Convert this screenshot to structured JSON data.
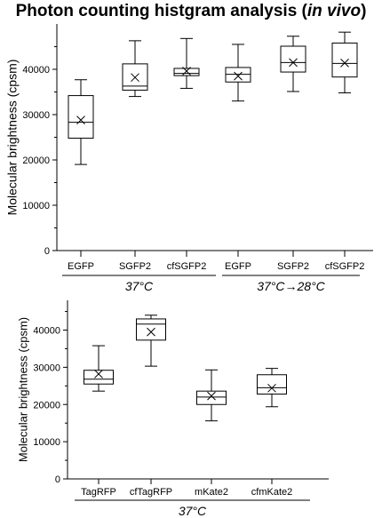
{
  "title": {
    "prefix": "Photon counting histgram analysis (",
    "italic": "in vivo",
    "suffix": ")"
  },
  "chart_data": [
    {
      "type": "box",
      "ylabel": "Molecular brightness (cpsm)",
      "ylim": [
        0,
        50000
      ],
      "yticks": [
        0,
        10000,
        20000,
        30000,
        40000
      ],
      "categories": [
        "EGFP",
        "SGFP2",
        "cfSGFP2",
        "EGFP",
        "SGFP2",
        "cfSGFP2"
      ],
      "groups": [
        {
          "label": "37°C",
          "members": [
            0,
            1,
            2
          ]
        },
        {
          "label": "37°C→28°C",
          "members": [
            3,
            4,
            5
          ]
        }
      ],
      "boxes": [
        {
          "min": 19000,
          "q1": 24800,
          "median": 28300,
          "q3": 34200,
          "max": 37700,
          "mean": 28800
        },
        {
          "min": 34000,
          "q1": 35400,
          "median": 36300,
          "q3": 41200,
          "max": 46300,
          "mean": 38200
        },
        {
          "min": 35800,
          "q1": 38600,
          "median": 39100,
          "q3": 40200,
          "max": 46800,
          "mean": 39600
        },
        {
          "min": 33000,
          "q1": 37200,
          "median": 38900,
          "q3": 40400,
          "max": 45500,
          "mean": 38500
        },
        {
          "min": 35100,
          "q1": 39400,
          "median": 41500,
          "q3": 45100,
          "max": 47300,
          "mean": 41500
        },
        {
          "min": 34800,
          "q1": 38300,
          "median": 41300,
          "q3": 45800,
          "max": 48200,
          "mean": 41400
        }
      ]
    },
    {
      "type": "box",
      "ylabel": "Molecular brightness (cpsm)",
      "ylim": [
        0,
        48000
      ],
      "yticks": [
        0,
        10000,
        20000,
        30000,
        40000
      ],
      "categories": [
        "TagRFP",
        "cfTagRFP",
        "mKate2",
        "cfmKate2"
      ],
      "groups": [
        {
          "label": "37°C",
          "members": [
            0,
            1,
            2,
            3
          ]
        }
      ],
      "boxes": [
        {
          "min": 23600,
          "q1": 25500,
          "median": 26800,
          "q3": 29200,
          "max": 35800,
          "mean": 28200
        },
        {
          "min": 30300,
          "q1": 37300,
          "median": 41600,
          "q3": 43000,
          "max": 44000,
          "mean": 39500
        },
        {
          "min": 15600,
          "q1": 20000,
          "median": 22000,
          "q3": 23600,
          "max": 29300,
          "mean": 22300
        },
        {
          "min": 19400,
          "q1": 22800,
          "median": 24500,
          "q3": 28000,
          "max": 29700,
          "mean": 24400
        }
      ]
    }
  ]
}
